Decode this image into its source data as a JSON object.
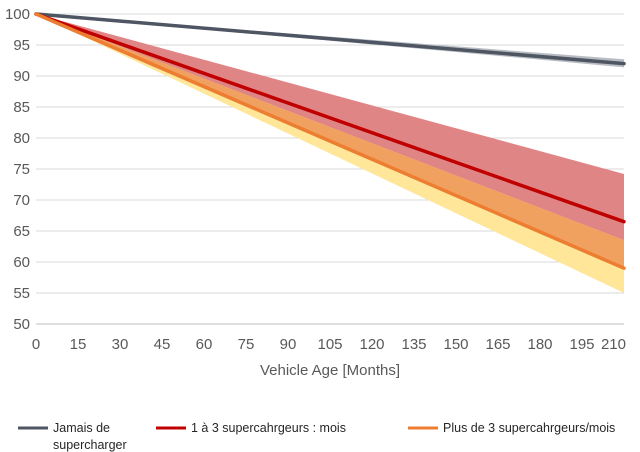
{
  "chart_data": {
    "type": "line",
    "title": "",
    "xlabel": "Vehicle Age [Months]",
    "ylabel": "",
    "xlim": [
      0,
      210
    ],
    "ylim": [
      50,
      100
    ],
    "xticks": [
      "0",
      "15",
      "30",
      "45",
      "60",
      "75",
      "90",
      "105",
      "120",
      "135",
      "150",
      "165",
      "180",
      "195",
      "210"
    ],
    "yticks": [
      "50",
      "55",
      "60",
      "65",
      "70",
      "75",
      "80",
      "85",
      "90",
      "95",
      "100"
    ],
    "grid": "horizontal",
    "legend_position": "bottom",
    "series": [
      {
        "name": "Jamais de supercharger",
        "name_lines": [
          "Jamais de",
          "supercharger"
        ],
        "color": "#4e5563",
        "band_color": "#b9bcc2",
        "x": [
          0,
          210
        ],
        "values": [
          100,
          92.0
        ],
        "band_upper": [
          100,
          92.7
        ],
        "band_lower": [
          100,
          91.4
        ]
      },
      {
        "name": "1 à 3 supercahrgeurs : mois",
        "name_lines": [
          "1 à 3 supercahrgeurs : mois"
        ],
        "color": "#c00000",
        "band_color": "#e08585",
        "x": [
          0,
          210
        ],
        "values": [
          100,
          66.5
        ],
        "band_upper": [
          100,
          74.2
        ],
        "band_lower": [
          100,
          63.5
        ]
      },
      {
        "name": "Plus de 3 supercahrgeurs/mois",
        "name_lines": [
          "Plus de 3 supercahrgeurs/mois"
        ],
        "color": "#ed7d31",
        "band_color": "#ffe699",
        "band_overlap_color": "#f0a05f",
        "x": [
          0,
          210
        ],
        "values": [
          100,
          59.0
        ],
        "band_upper": [
          100,
          63.5
        ],
        "band_lower": [
          100,
          55.0
        ]
      }
    ]
  }
}
